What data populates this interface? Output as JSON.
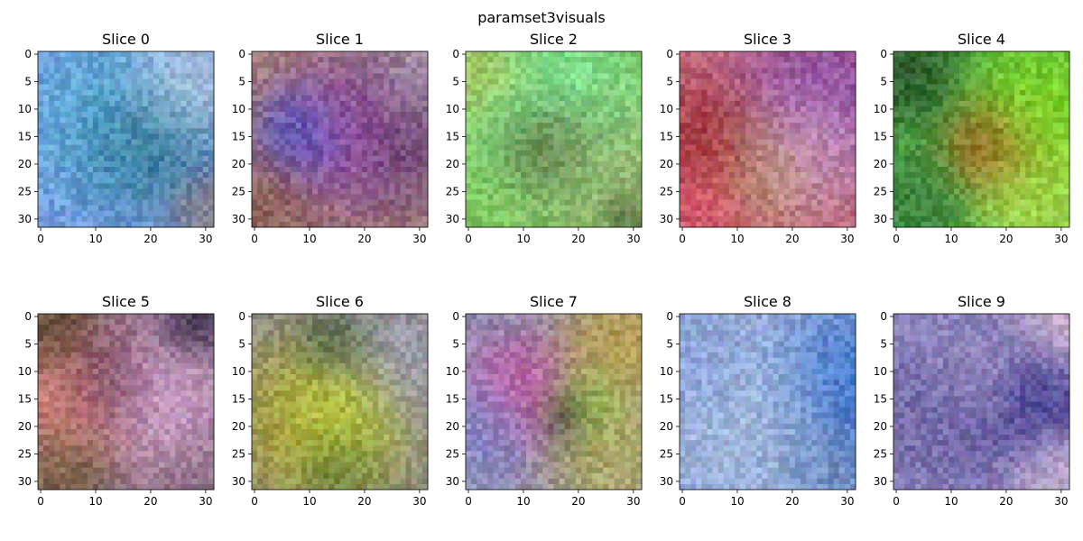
{
  "figure": {
    "title": "paramset3visuals"
  },
  "chart_data": {
    "type": "heatmap",
    "grid": {
      "rows": 2,
      "cols": 5
    },
    "image_size": [
      32,
      32
    ],
    "xlim": [
      -0.5,
      31.5
    ],
    "ylim": [
      31.5,
      -0.5
    ],
    "x_ticks": [
      0,
      10,
      20,
      30
    ],
    "y_ticks": [
      0,
      5,
      10,
      15,
      20,
      25,
      30
    ],
    "panels": [
      {
        "title": "Slice 0",
        "base": "#7f98e4",
        "blobs": [
          {
            "x": 19,
            "y": 16,
            "r": 7,
            "color": "#0f5565"
          },
          {
            "x": 12,
            "y": 12,
            "r": 10,
            "color": "#53b6d6"
          },
          {
            "x": 26,
            "y": 6,
            "r": 6,
            "color": "#d2ddea"
          },
          {
            "x": 30,
            "y": 28,
            "r": 4,
            "color": "#8a7366"
          }
        ]
      },
      {
        "title": "Slice 1",
        "base": "#a38079",
        "blobs": [
          {
            "x": 9,
            "y": 15,
            "r": 5,
            "color": "#1f4fd0"
          },
          {
            "x": 15,
            "y": 15,
            "r": 7,
            "color": "#c056c6"
          },
          {
            "x": 24,
            "y": 14,
            "r": 8,
            "color": "#55326f"
          },
          {
            "x": 30,
            "y": 4,
            "r": 5,
            "color": "#b3a6c6"
          },
          {
            "x": 4,
            "y": 27,
            "r": 5,
            "color": "#8c5a4f"
          }
        ]
      },
      {
        "title": "Slice 2",
        "base": "#7ec45c",
        "blobs": [
          {
            "x": 15,
            "y": 16,
            "r": 5,
            "color": "#4a3a1d"
          },
          {
            "x": 16,
            "y": 8,
            "r": 9,
            "color": "#7ef0a6"
          },
          {
            "x": 26,
            "y": 22,
            "r": 8,
            "color": "#9fb27b"
          },
          {
            "x": 2,
            "y": 3,
            "r": 5,
            "color": "#b9c160"
          },
          {
            "x": 29,
            "y": 29,
            "r": 3,
            "color": "#3f4b2a"
          }
        ]
      },
      {
        "title": "Slice 3",
        "base": "#c46a79",
        "blobs": [
          {
            "x": 5,
            "y": 17,
            "r": 6,
            "color": "#9a1f22"
          },
          {
            "x": 26,
            "y": 8,
            "r": 9,
            "color": "#7d48b8"
          },
          {
            "x": 24,
            "y": 16,
            "r": 6,
            "color": "#dfb2cf"
          },
          {
            "x": 15,
            "y": 20,
            "r": 6,
            "color": "#b7a770"
          },
          {
            "x": 3,
            "y": 28,
            "r": 5,
            "color": "#e0566d"
          }
        ]
      },
      {
        "title": "Slice 4",
        "base": "#54b54c",
        "blobs": [
          {
            "x": 17,
            "y": 17,
            "r": 5,
            "color": "#b4421a"
          },
          {
            "x": 28,
            "y": 10,
            "r": 8,
            "color": "#8ee21c"
          },
          {
            "x": 2,
            "y": 3,
            "r": 6,
            "color": "#1d3b22"
          },
          {
            "x": 26,
            "y": 26,
            "r": 7,
            "color": "#c6e24e"
          },
          {
            "x": 4,
            "y": 27,
            "r": 5,
            "color": "#2f6a34"
          }
        ]
      },
      {
        "title": "Slice 5",
        "base": "#8f6f86",
        "blobs": [
          {
            "x": 5,
            "y": 15,
            "r": 7,
            "color": "#ee8a72"
          },
          {
            "x": 21,
            "y": 14,
            "r": 7,
            "color": "#e2b4e3"
          },
          {
            "x": 12,
            "y": 12,
            "r": 5,
            "color": "#4a1f44"
          },
          {
            "x": 2,
            "y": 2,
            "r": 5,
            "color": "#50431b"
          },
          {
            "x": 4,
            "y": 28,
            "r": 5,
            "color": "#695b2e"
          },
          {
            "x": 28,
            "y": 1,
            "r": 4,
            "color": "#2c2340"
          }
        ]
      },
      {
        "title": "Slice 6",
        "base": "#8e8e8a",
        "blobs": [
          {
            "x": 15,
            "y": 18,
            "r": 6,
            "color": "#c5ee2e"
          },
          {
            "x": 11,
            "y": 20,
            "r": 9,
            "color": "#b1a21f"
          },
          {
            "x": 15,
            "y": 5,
            "r": 4,
            "color": "#2d4a32"
          },
          {
            "x": 26,
            "y": 8,
            "r": 7,
            "color": "#a3a1bd"
          },
          {
            "x": 15,
            "y": 27,
            "r": 4,
            "color": "#3b6833"
          }
        ]
      },
      {
        "title": "Slice 7",
        "base": "#8f8fb2",
        "blobs": [
          {
            "x": 10,
            "y": 14,
            "r": 6,
            "color": "#d14d9f"
          },
          {
            "x": 18,
            "y": 18,
            "r": 3,
            "color": "#14101a"
          },
          {
            "x": 21,
            "y": 16,
            "r": 4,
            "color": "#8fe040"
          },
          {
            "x": 28,
            "y": 5,
            "r": 7,
            "color": "#c2a22e"
          },
          {
            "x": 26,
            "y": 25,
            "r": 7,
            "color": "#b8b24a"
          },
          {
            "x": 3,
            "y": 20,
            "r": 5,
            "color": "#7e8fd6"
          }
        ]
      },
      {
        "title": "Slice 8",
        "base": "#93a9d7",
        "blobs": [
          {
            "x": 30,
            "y": 14,
            "r": 8,
            "color": "#1d5fc6"
          },
          {
            "x": 15,
            "y": 18,
            "r": 8,
            "color": "#b3c9e2"
          },
          {
            "x": 4,
            "y": 10,
            "r": 6,
            "color": "#8aa2dc"
          },
          {
            "x": 26,
            "y": 26,
            "r": 5,
            "color": "#6b86b8"
          }
        ]
      },
      {
        "title": "Slice 9",
        "base": "#8d86bd",
        "blobs": [
          {
            "x": 24,
            "y": 14,
            "r": 7,
            "color": "#2a2380"
          },
          {
            "x": 16,
            "y": 11,
            "r": 5,
            "color": "#bdb3dc"
          },
          {
            "x": 8,
            "y": 18,
            "r": 7,
            "color": "#6a5ea0"
          },
          {
            "x": 30,
            "y": 2,
            "r": 5,
            "color": "#eed3df"
          },
          {
            "x": 30,
            "y": 29,
            "r": 5,
            "color": "#d9c2da"
          }
        ]
      }
    ]
  }
}
